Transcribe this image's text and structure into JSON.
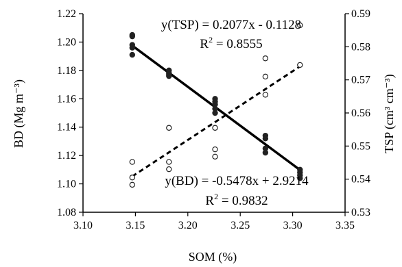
{
  "chart_data": {
    "type": "scatter",
    "xlabel": "SOM (%)",
    "ylabel_left": "BD (Mg m⁻³)",
    "ylabel_right": "TSP (cm³ cm⁻³)",
    "xlim": [
      3.1,
      3.35
    ],
    "ylim_left": [
      1.08,
      1.22
    ],
    "ylim_right": [
      0.53,
      0.59
    ],
    "x_ticks": [
      "3.10",
      "3.15",
      "3.20",
      "3.25",
      "3.30",
      "3.35"
    ],
    "y_left_ticks": [
      "1.08",
      "1.10",
      "1.12",
      "1.14",
      "1.16",
      "1.18",
      "1.20",
      "1.22"
    ],
    "y_right_ticks": [
      "0.53",
      "0.54",
      "0.55",
      "0.56",
      "0.57",
      "0.58",
      "0.59"
    ],
    "grid": false,
    "series": [
      {
        "key": "bd",
        "axis": "left",
        "marker": "filled-circle",
        "color": "#222222",
        "points": [
          [
            3.147,
            1.205
          ],
          [
            3.147,
            1.204
          ],
          [
            3.147,
            1.198
          ],
          [
            3.147,
            1.196
          ],
          [
            3.147,
            1.191
          ],
          [
            3.182,
            1.18
          ],
          [
            3.182,
            1.178
          ],
          [
            3.182,
            1.177
          ],
          [
            3.182,
            1.176
          ],
          [
            3.226,
            1.16
          ],
          [
            3.226,
            1.158
          ],
          [
            3.226,
            1.156
          ],
          [
            3.226,
            1.153
          ],
          [
            3.226,
            1.15
          ],
          [
            3.274,
            1.134
          ],
          [
            3.274,
            1.132
          ],
          [
            3.274,
            1.125
          ],
          [
            3.274,
            1.122
          ],
          [
            3.307,
            1.11
          ],
          [
            3.307,
            1.108
          ],
          [
            3.307,
            1.106
          ],
          [
            3.307,
            1.104
          ]
        ],
        "fit": {
          "slope": -0.5478,
          "intercept": 2.9214,
          "x_range": [
            3.147,
            3.307
          ],
          "style": "solid"
        },
        "equation": "y(BD) = -0.5478x + 2.9214",
        "r2_prefix": "R",
        "r2_sup": "2",
        "r2_value": " = 0.9832"
      },
      {
        "key": "tsp",
        "axis": "right",
        "marker": "open-circle",
        "color": "#222222",
        "points": [
          [
            3.147,
            0.5452
          ],
          [
            3.147,
            0.5405
          ],
          [
            3.147,
            0.5383
          ],
          [
            3.182,
            0.5555
          ],
          [
            3.182,
            0.5452
          ],
          [
            3.182,
            0.543
          ],
          [
            3.226,
            0.5555
          ],
          [
            3.226,
            0.549
          ],
          [
            3.226,
            0.5468
          ],
          [
            3.274,
            0.5765
          ],
          [
            3.274,
            0.571
          ],
          [
            3.274,
            0.5655
          ],
          [
            3.307,
            0.5865
          ],
          [
            3.307,
            0.5745
          ]
        ],
        "fit": {
          "slope": 0.2077,
          "intercept": -0.1128,
          "x_range": [
            3.147,
            3.307
          ],
          "style": "dashed"
        },
        "equation": "y(TSP) = 0.2077x - 0.1128",
        "r2_prefix": "R",
        "r2_sup": "2",
        "r2_value": " = 0.8555"
      }
    ]
  }
}
